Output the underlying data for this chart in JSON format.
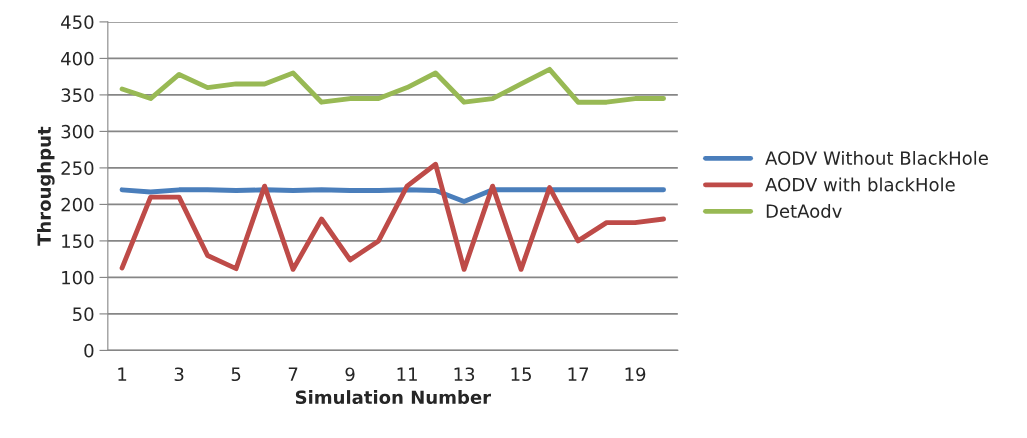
{
  "chart_data": {
    "type": "line",
    "xlabel": "Simulation Number",
    "ylabel": "Throughput",
    "categories": [
      "1",
      null,
      "3",
      null,
      "5",
      null,
      "7",
      null,
      "9",
      null,
      "11",
      null,
      "13",
      null,
      "15",
      null,
      "17",
      null,
      "19",
      null
    ],
    "series": [
      {
        "name": "AODV Without BlackHole",
        "color": "#4a7ebb",
        "values": [
          220,
          217,
          220,
          220,
          219,
          220,
          219,
          220,
          219,
          219,
          220,
          219,
          204,
          220,
          220,
          220,
          220,
          220,
          220,
          220
        ]
      },
      {
        "name": "AODV with blackHole",
        "color": "#be4b48",
        "values": [
          113,
          210,
          210,
          130,
          112,
          225,
          111,
          180,
          124,
          150,
          225,
          255,
          111,
          225,
          111,
          223,
          150,
          175,
          175,
          180
        ]
      },
      {
        "name": "DetAodv",
        "color": "#98b954",
        "values": [
          358,
          345,
          378,
          360,
          365,
          365,
          380,
          340,
          345,
          345,
          360,
          380,
          340,
          345,
          365,
          385,
          340,
          340,
          345,
          345
        ]
      }
    ],
    "ylim": [
      0,
      450
    ],
    "yticks": [
      0,
      50,
      100,
      150,
      200,
      250,
      300,
      350,
      400,
      450
    ],
    "grid": "y",
    "legend": "right",
    "marker": "none",
    "line_style": "solid"
  }
}
